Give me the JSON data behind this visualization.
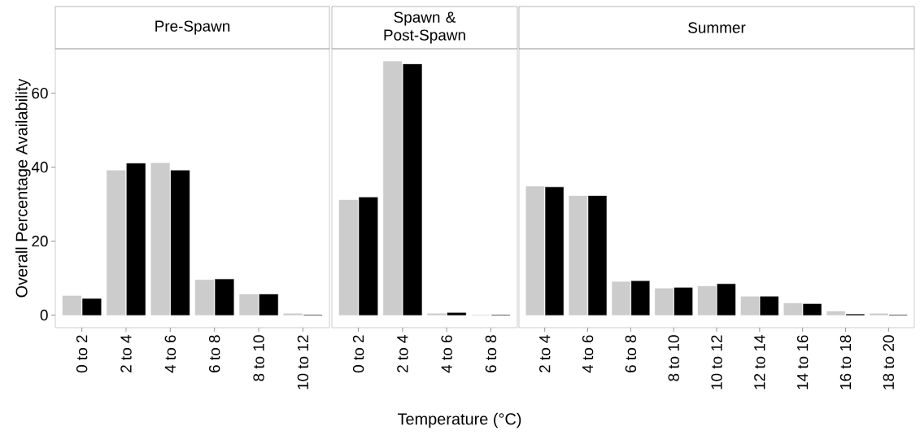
{
  "chart_data": [
    {
      "type": "bar",
      "title": "Pre-Spawn",
      "ylabel": "Overall Percentage Availability",
      "categories": [
        "0 to 2",
        "2 to 4",
        "4 to 6",
        "6 to 8",
        "8 to 10",
        "10 to 12"
      ],
      "ylim": [
        -3.4,
        72
      ],
      "yticks": [
        0,
        20,
        40,
        60
      ],
      "grid": false,
      "series": [
        {
          "color": "#cccccc",
          "values": [
            5.2,
            39.1,
            41.1,
            9.5,
            5.6,
            0.4
          ]
        },
        {
          "color": "#000000",
          "values": [
            4.4,
            41.0,
            39.1,
            9.7,
            5.6,
            0
          ]
        }
      ]
    },
    {
      "type": "bar",
      "title": "Spawn & Post-Spawn",
      "xlabel": "Temperature (°C)",
      "categories": [
        "0 to 2",
        "2 to 4",
        "4 to 6",
        "6 to 8"
      ],
      "ylim": [
        -3.4,
        72
      ],
      "tick_labels": "x",
      "grid": false,
      "series": [
        {
          "color": "#cccccc",
          "values": [
            31.1,
            68.6,
            0.4,
            0
          ]
        },
        {
          "color": "#000000",
          "values": [
            31.8,
            67.8,
            0.6,
            0
          ]
        }
      ]
    },
    {
      "type": "bar",
      "title": "Summer",
      "categories": [
        "2 to 4",
        "4 to 6",
        "6 to 8",
        "8 to 10",
        "10 to 12",
        "12 to 14",
        "14 to 16",
        "16 to 18",
        "18 to 20"
      ],
      "ylim": [
        -3.4,
        72
      ],
      "tick_labels": "x",
      "grid": false,
      "series": [
        {
          "color": "#cccccc",
          "values": [
            34.8,
            32.2,
            9.0,
            7.2,
            7.8,
            5.0,
            3.2,
            1.0,
            0.4
          ]
        },
        {
          "color": "#000000",
          "values": [
            34.6,
            32.2,
            9.2,
            7.4,
            8.4,
            5.0,
            3.0,
            0.2,
            0
          ]
        }
      ]
    }
  ]
}
